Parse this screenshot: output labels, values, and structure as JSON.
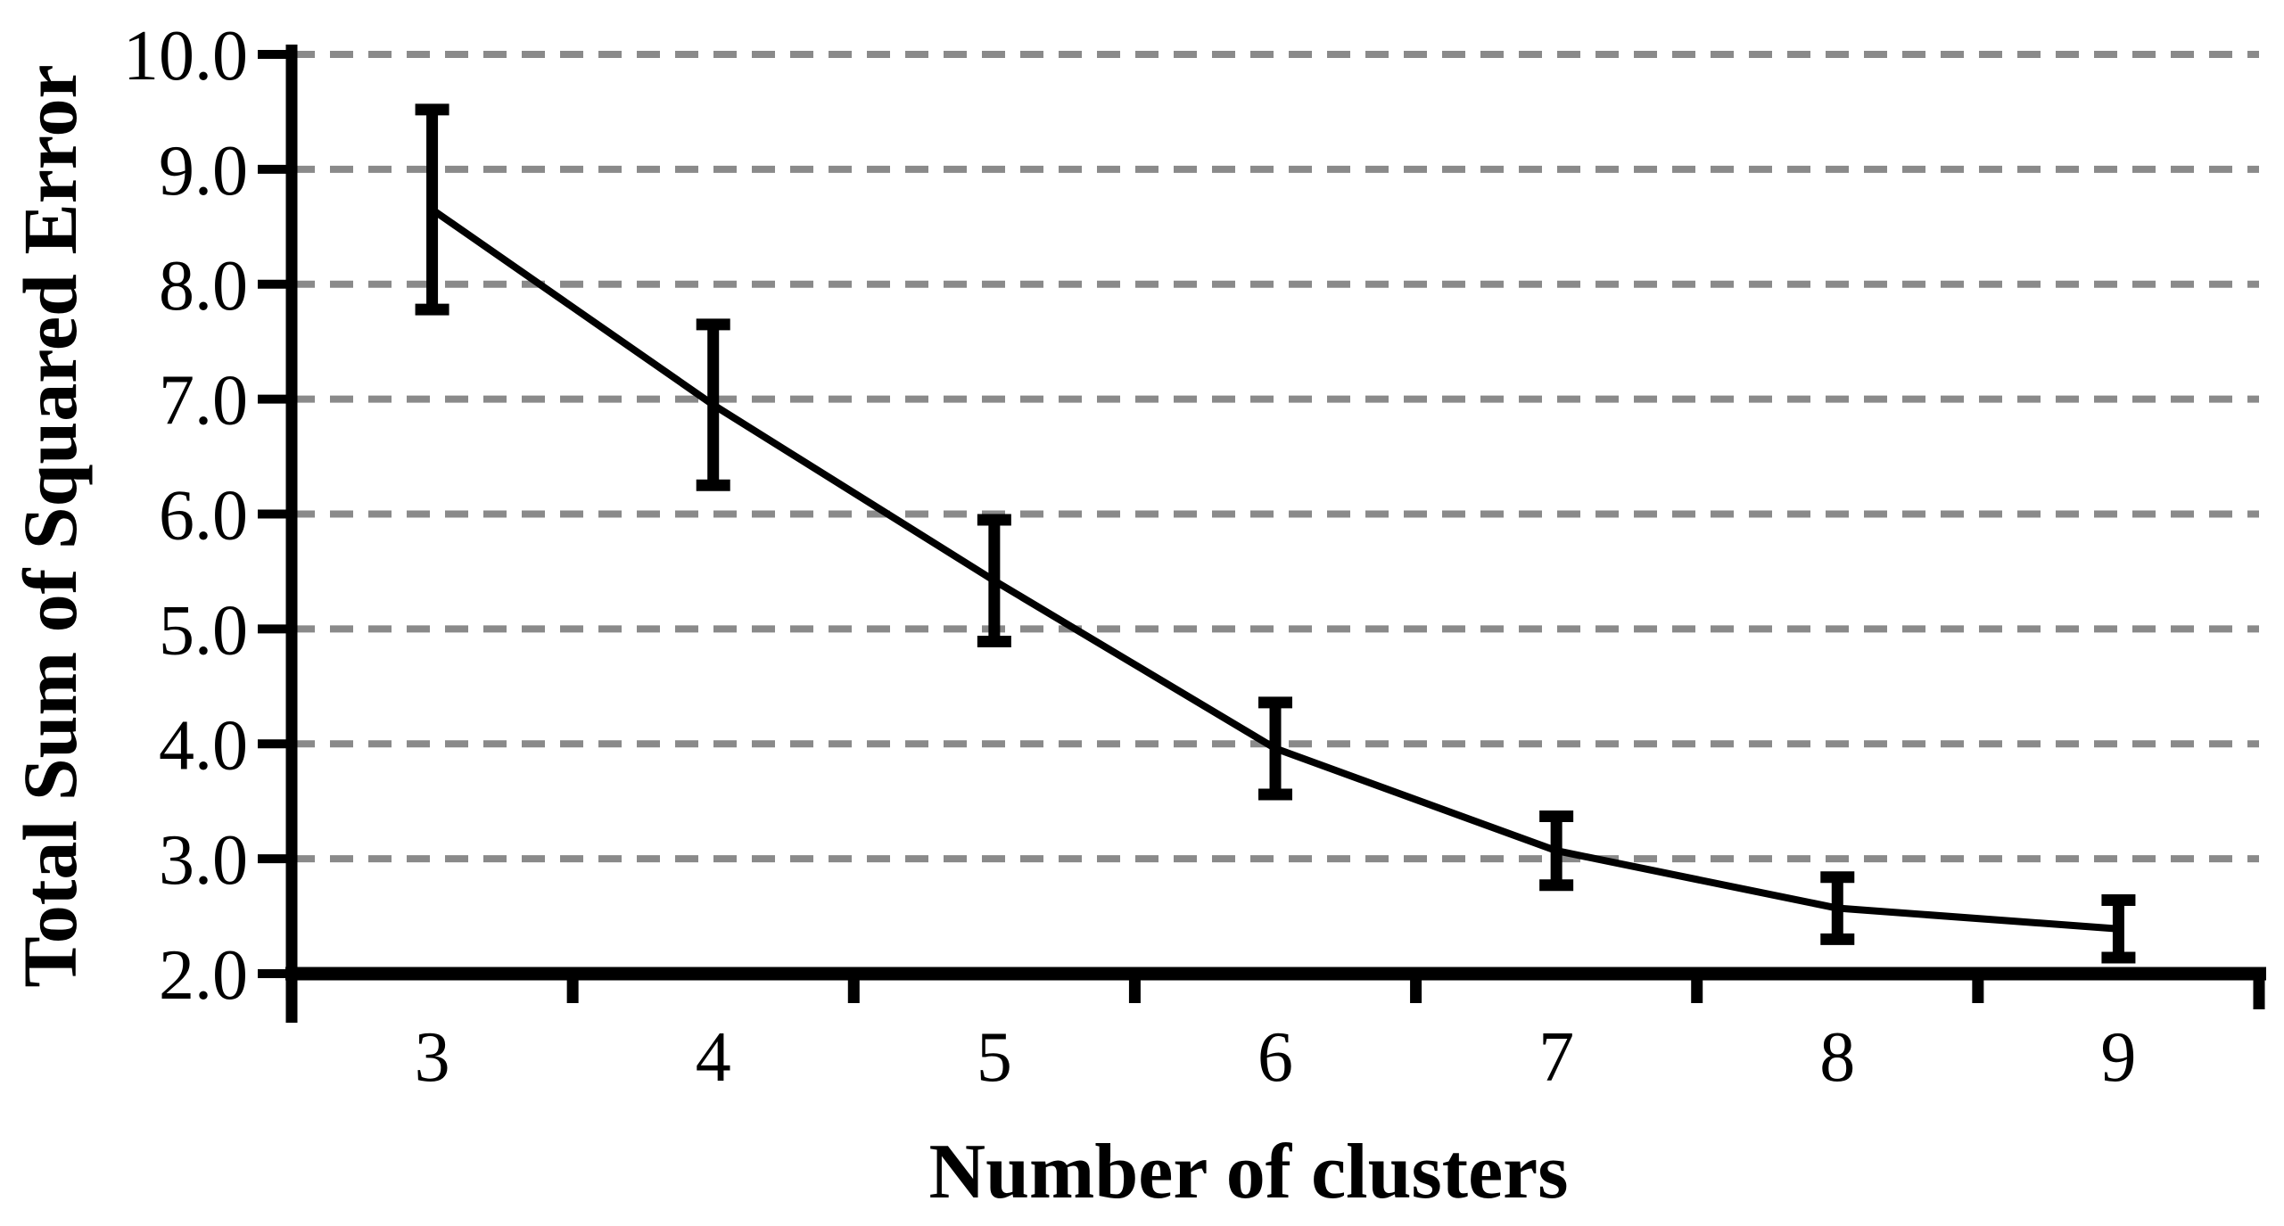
{
  "chart_data": {
    "type": "line",
    "title": "",
    "xlabel": "Number of clusters",
    "ylabel": "Total Sum of Squared Error",
    "categories": [
      "3",
      "4",
      "5",
      "6",
      "7",
      "8",
      "9"
    ],
    "series": [
      {
        "name": "Total Sum of Squared Error",
        "values": [
          8.65,
          6.95,
          5.42,
          3.96,
          3.07,
          2.57,
          2.39
        ],
        "error_bars": [
          0.87,
          0.7,
          0.53,
          0.4,
          0.3,
          0.27,
          0.25
        ]
      }
    ],
    "ylim": [
      2.0,
      10.0
    ],
    "ytick_step": 1.0,
    "ytick_labels": [
      "10.0",
      "9.0",
      "8.0",
      "7.0",
      "6.0",
      "5.0",
      "4.0",
      "3.0",
      "2.0"
    ],
    "grid": "horizontal-dashed",
    "legend": "none",
    "marker": "error-bar-caps",
    "colors": {
      "line": "#000000",
      "error_bar": "#000000",
      "axis": "#000000",
      "grid": "#8a8a8a",
      "background": "#ffffff",
      "text": "#000000"
    }
  }
}
